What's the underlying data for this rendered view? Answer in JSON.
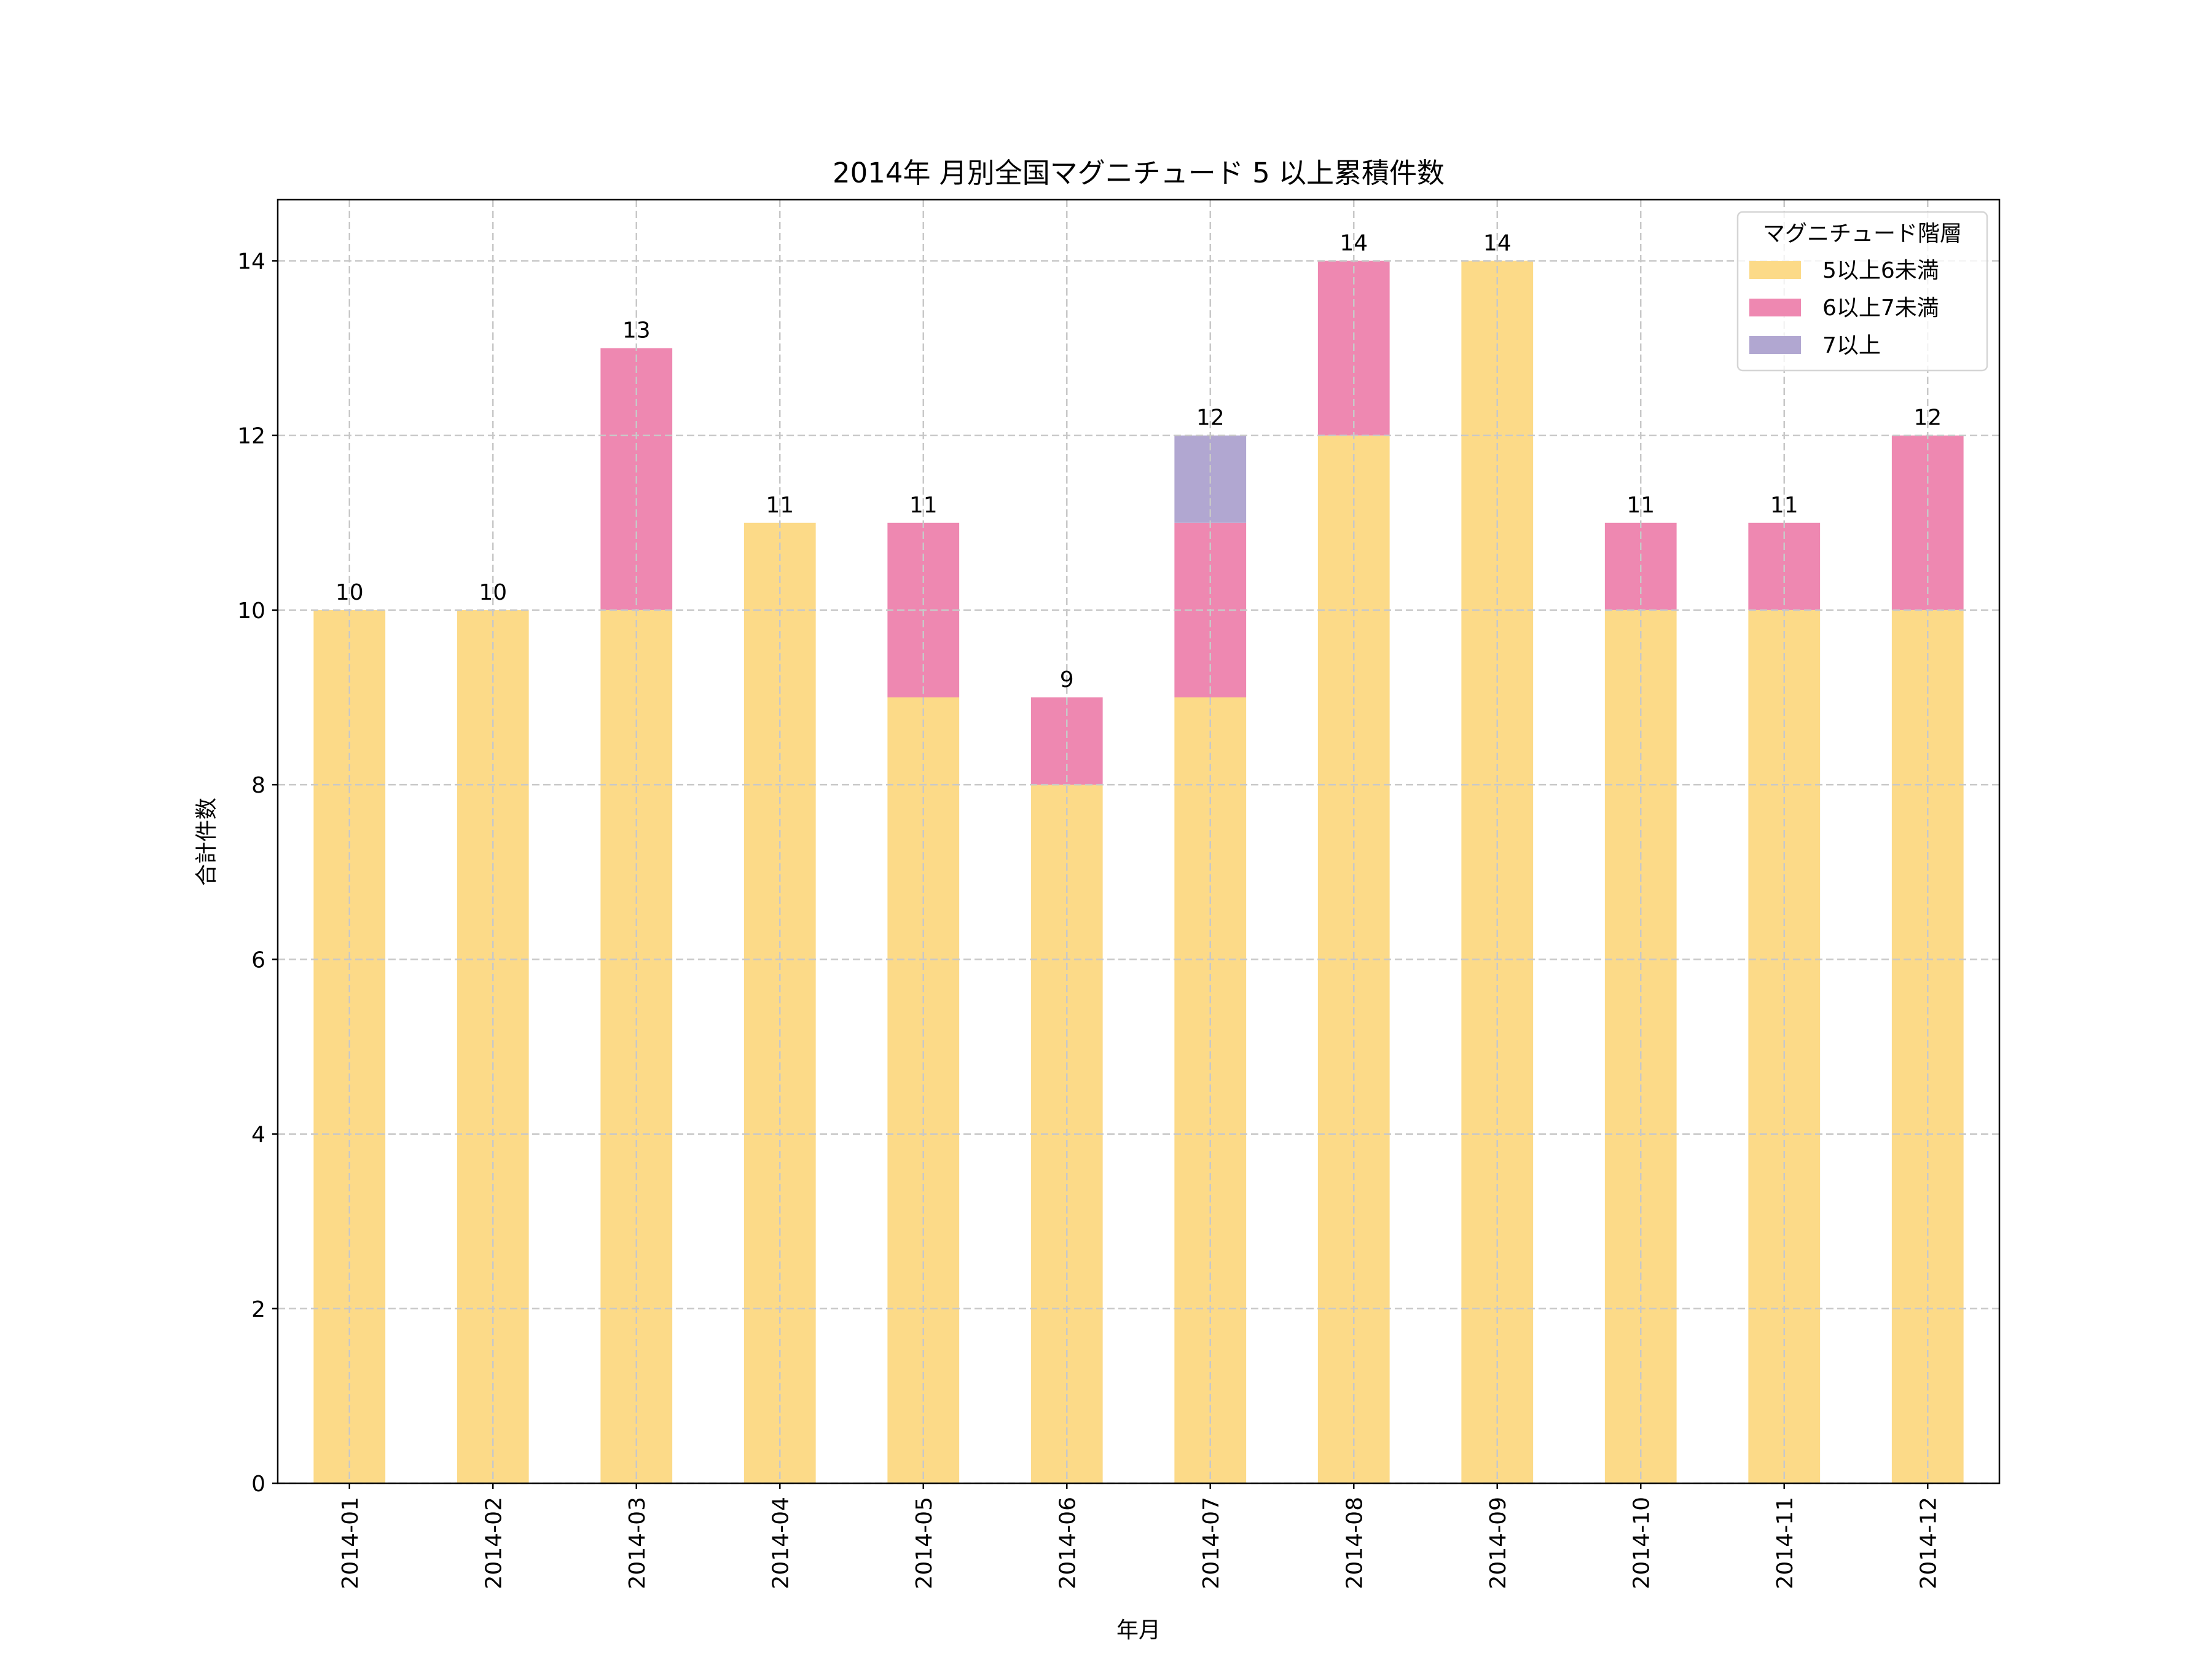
{
  "chart_data": {
    "type": "bar",
    "stacked": true,
    "title": "2014年 月別全国マグニチュード 5 以上累積件数",
    "xlabel": "年月",
    "ylabel": "合計件数",
    "ylim": [
      0,
      14.7
    ],
    "yticks": [
      0,
      2,
      4,
      6,
      8,
      10,
      12,
      14
    ],
    "grid": true,
    "categories": [
      "2014-01",
      "2014-02",
      "2014-03",
      "2014-04",
      "2014-05",
      "2014-06",
      "2014-07",
      "2014-08",
      "2014-09",
      "2014-10",
      "2014-11",
      "2014-12"
    ],
    "series": [
      {
        "name": "5以上6未満",
        "color": "#fcda88",
        "values": [
          10,
          10,
          10,
          11,
          9,
          8,
          9,
          12,
          14,
          10,
          10,
          10
        ]
      },
      {
        "name": "6以上7未満",
        "color": "#ee88b1",
        "values": [
          0,
          0,
          3,
          0,
          2,
          1,
          2,
          2,
          0,
          1,
          1,
          2
        ]
      },
      {
        "name": "7以上",
        "color": "#b1a7d1",
        "values": [
          0,
          0,
          0,
          0,
          0,
          0,
          1,
          0,
          0,
          0,
          0,
          0
        ]
      }
    ],
    "totals": [
      10,
      10,
      13,
      11,
      11,
      9,
      12,
      14,
      14,
      11,
      11,
      12
    ],
    "legend": {
      "title": "マグニチュード階層",
      "position": "upper-right"
    }
  }
}
